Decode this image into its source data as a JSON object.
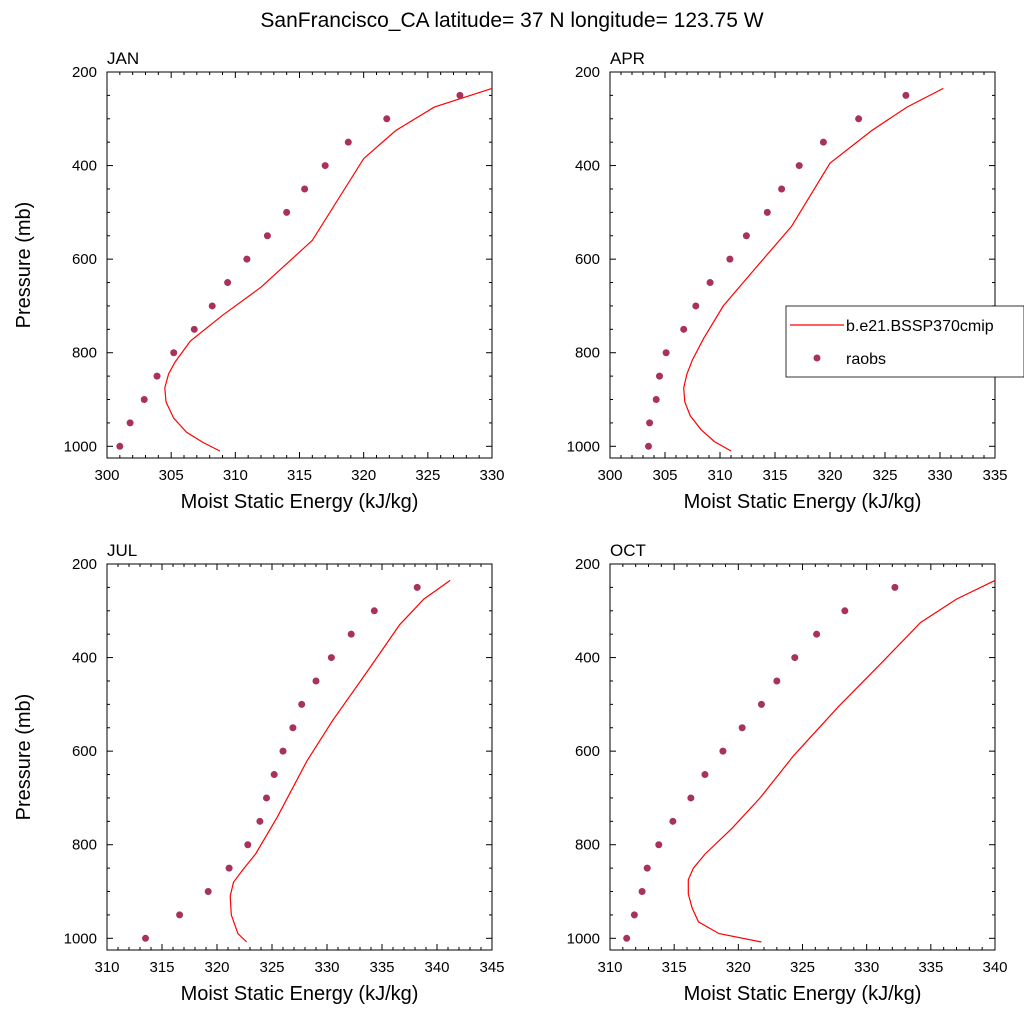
{
  "figure": {
    "title": "SanFrancisco_CA  latitude= 37 N longitude= 123.75 W"
  },
  "colors": {
    "model": "#ff0000",
    "obs": "#a8325a"
  },
  "legend": {
    "placement": "right of APR panel, overlapping edge",
    "entries": [
      {
        "label": "b.e21.BSSP370cmip",
        "style": "line"
      },
      {
        "label": "raobs",
        "style": "marker"
      }
    ]
  },
  "chart_data": [
    {
      "type": "line",
      "title": "JAN",
      "xlabel": "Moist Static Energy (kJ/kg)",
      "ylabel": "Pressure (mb)",
      "xlim": [
        300,
        330
      ],
      "ylim": [
        1025,
        200
      ],
      "x_ticks": [
        "300",
        "305",
        "310",
        "315",
        "320",
        "325",
        "330"
      ],
      "y_ticks": [
        "200",
        "400",
        "600",
        "800",
        "1000"
      ],
      "series": [
        {
          "name": "b.e21.BSSP370cmip",
          "style": "line",
          "x": [
            308.8,
            307.5,
            306.2,
            305.2,
            304.6,
            304.5,
            304.8,
            305.3,
            306.5,
            309,
            312,
            316,
            320,
            322.5,
            325.5,
            330
          ],
          "y": [
            1010,
            992,
            970,
            940,
            905,
            875,
            845,
            820,
            775,
            720,
            660,
            560,
            385,
            325,
            275,
            235
          ]
        },
        {
          "name": "raobs",
          "style": "marker",
          "x": [
            301,
            301.8,
            302.9,
            303.9,
            305.2,
            306.8,
            308.2,
            309.4,
            310.9,
            312.5,
            314,
            315.4,
            317,
            318.8,
            321.8,
            327.5
          ],
          "y": [
            1000,
            950,
            900,
            850,
            800,
            750,
            700,
            650,
            600,
            550,
            500,
            450,
            400,
            350,
            300,
            250
          ]
        }
      ]
    },
    {
      "type": "line",
      "title": "APR",
      "xlabel": "Moist Static Energy (kJ/kg)",
      "ylabel": "",
      "xlim": [
        300,
        335
      ],
      "ylim": [
        1025,
        200
      ],
      "x_ticks": [
        "300",
        "305",
        "310",
        "315",
        "320",
        "325",
        "330",
        "335"
      ],
      "y_ticks": [
        "200",
        "400",
        "600",
        "800",
        "1000"
      ],
      "series": [
        {
          "name": "b.e21.BSSP370cmip",
          "style": "line",
          "x": [
            311,
            309.5,
            308.3,
            307.3,
            306.8,
            306.7,
            307,
            307.5,
            308.5,
            310.3,
            313.2,
            316.5,
            320,
            323.8,
            327,
            330.3
          ],
          "y": [
            1010,
            990,
            965,
            935,
            905,
            875,
            845,
            815,
            770,
            700,
            620,
            530,
            395,
            325,
            275,
            235
          ]
        },
        {
          "name": "raobs",
          "style": "marker",
          "x": [
            303.5,
            303.6,
            304.2,
            304.5,
            305.1,
            306.7,
            307.8,
            309.1,
            310.9,
            312.4,
            314.3,
            315.6,
            317.2,
            319.4,
            322.6,
            326.9
          ],
          "y": [
            1000,
            950,
            900,
            850,
            800,
            750,
            700,
            650,
            600,
            550,
            500,
            450,
            400,
            350,
            300,
            250
          ]
        }
      ]
    },
    {
      "type": "line",
      "title": "JUL",
      "xlabel": "Moist Static Energy (kJ/kg)",
      "ylabel": "Pressure (mb)",
      "xlim": [
        310,
        345
      ],
      "ylim": [
        1025,
        200
      ],
      "x_ticks": [
        "310",
        "315",
        "320",
        "325",
        "330",
        "335",
        "340",
        "345"
      ],
      "y_ticks": [
        "200",
        "400",
        "600",
        "800",
        "1000"
      ],
      "series": [
        {
          "name": "b.e21.BSSP370cmip",
          "style": "line",
          "x": [
            322.7,
            321.9,
            321.3,
            321.2,
            321.5,
            322.3,
            323.5,
            325.5,
            328.2,
            330.5,
            333.5,
            336.6,
            338.8,
            341.2
          ],
          "y": [
            1008,
            990,
            950,
            910,
            880,
            855,
            820,
            740,
            620,
            535,
            435,
            330,
            275,
            235
          ]
        },
        {
          "name": "raobs",
          "style": "marker",
          "x": [
            313.5,
            316.6,
            319.2,
            321.1,
            322.8,
            323.9,
            324.5,
            325.2,
            326,
            326.9,
            327.7,
            329,
            330.4,
            332.2,
            334.3,
            338.2
          ],
          "y": [
            1000,
            950,
            900,
            850,
            800,
            750,
            700,
            650,
            600,
            550,
            500,
            450,
            400,
            350,
            300,
            250
          ]
        }
      ]
    },
    {
      "type": "line",
      "title": "OCT",
      "xlabel": "Moist Static Energy (kJ/kg)",
      "ylabel": "",
      "xlim": [
        310,
        340
      ],
      "ylim": [
        1025,
        200
      ],
      "x_ticks": [
        "310",
        "315",
        "320",
        "325",
        "330",
        "335",
        "340"
      ],
      "y_ticks": [
        "200",
        "400",
        "600",
        "800",
        "1000"
      ],
      "series": [
        {
          "name": "b.e21.BSSP370cmip",
          "style": "line",
          "x": [
            321.8,
            318.5,
            316.9,
            316.4,
            316.1,
            316.1,
            316.5,
            317.4,
            319.5,
            321.7,
            324.3,
            327.8,
            331.2,
            334.2,
            337,
            340
          ],
          "y": [
            1008,
            990,
            965,
            935,
            905,
            875,
            850,
            820,
            765,
            700,
            610,
            505,
            410,
            325,
            275,
            235
          ]
        },
        {
          "name": "raobs",
          "style": "marker",
          "x": [
            311.3,
            311.9,
            312.5,
            312.9,
            313.8,
            314.9,
            316.3,
            317.4,
            318.8,
            320.3,
            321.8,
            323,
            324.4,
            326.1,
            328.3,
            332.2
          ],
          "y": [
            1000,
            950,
            900,
            850,
            800,
            750,
            700,
            650,
            600,
            550,
            500,
            450,
            400,
            350,
            300,
            250
          ]
        }
      ]
    }
  ]
}
